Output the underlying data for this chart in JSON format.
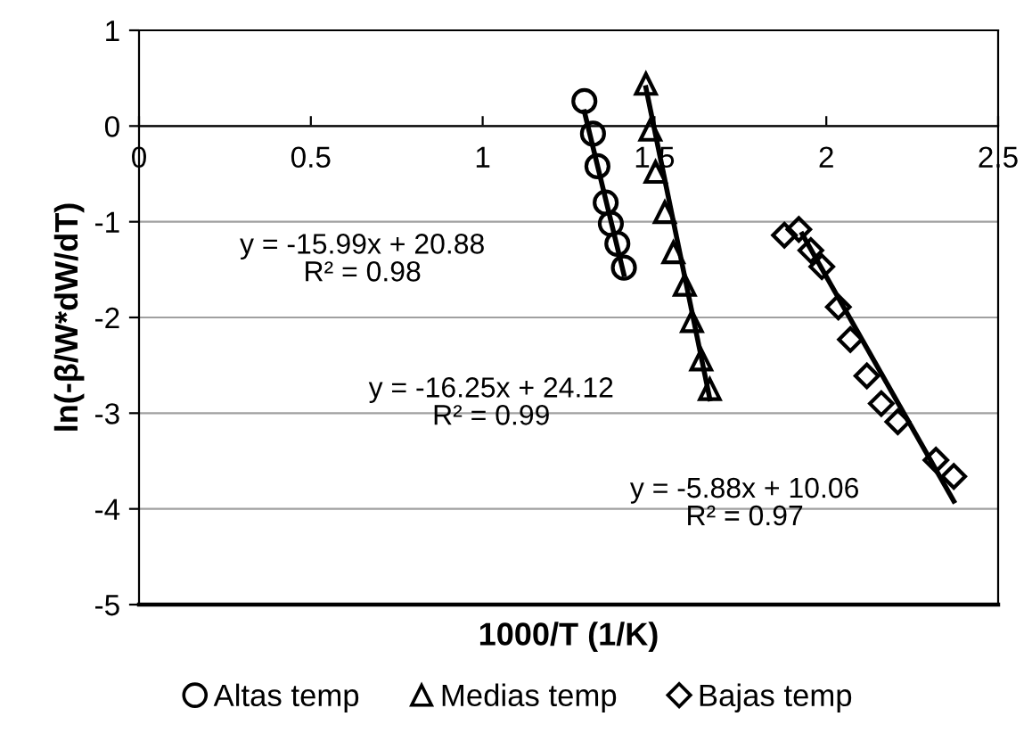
{
  "chart_data": {
    "type": "scatter",
    "xlabel": "1000/T (1/K)",
    "ylabel": "ln(-β/W*dW/dT)",
    "xlim": [
      0,
      2.5
    ],
    "xticks": [
      0,
      0.5,
      1,
      1.5,
      2,
      2.5
    ],
    "ylim": [
      -5,
      1
    ],
    "yticks": [
      -5,
      -4,
      -3,
      -2,
      -1,
      0,
      1
    ],
    "grid": "y",
    "legend": "bottom",
    "series": [
      {
        "name": "Altas temp",
        "color": "#000000",
        "marker": "circle",
        "x": [
          1.296,
          1.321,
          1.334,
          1.358,
          1.373,
          1.392,
          1.411
        ],
        "values": [
          0.26,
          -0.08,
          -0.42,
          -0.8,
          -1.02,
          -1.23,
          -1.48
        ]
      },
      {
        "name": "Medias temp",
        "color": "#000000",
        "marker": "triangle",
        "x": [
          1.475,
          1.488,
          1.503,
          1.53,
          1.555,
          1.588,
          1.609,
          1.636,
          1.661
        ],
        "values": [
          0.44,
          -0.04,
          -0.48,
          -0.9,
          -1.32,
          -1.66,
          -2.04,
          -2.44,
          -2.75
        ]
      },
      {
        "name": "Bajas temp",
        "color": "#000000",
        "marker": "diamond",
        "x": [
          1.878,
          1.92,
          1.955,
          1.987,
          2.035,
          2.07,
          2.118,
          2.16,
          2.208,
          2.319,
          2.371
        ],
        "values": [
          -1.14,
          -1.08,
          -1.3,
          -1.47,
          -1.89,
          -2.23,
          -2.61,
          -2.9,
          -3.09,
          -3.49,
          -3.66
        ]
      },
      {
        "type": "line",
        "color": "#000000",
        "marker": "none",
        "line_style": "solid",
        "x": [
          1.296,
          1.411
        ],
        "values": [
          0.15,
          -1.55
        ]
      },
      {
        "type": "line",
        "color": "#000000",
        "marker": "none",
        "line_style": "solid",
        "x": [
          1.475,
          1.661
        ],
        "values": [
          0.4,
          -2.85
        ]
      },
      {
        "type": "line",
        "color": "#000000",
        "marker": "none",
        "line_style": "solid",
        "x": [
          1.93,
          2.371
        ],
        "values": [
          -1.13,
          -3.92
        ]
      }
    ],
    "annotations": [
      "y = -15.99x + 20.88\nR² = 0.98",
      "y = -16.25x + 24.12\nR² = 0.99",
      "y = -5.88x + 10.06\nR² = 0.97"
    ]
  }
}
